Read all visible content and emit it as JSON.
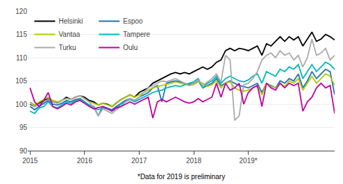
{
  "chart_data": {
    "type": "line",
    "categories": [
      "2015",
      null,
      null,
      null,
      null,
      null,
      null,
      null,
      null,
      null,
      null,
      null,
      "2016",
      null,
      null,
      null,
      null,
      null,
      null,
      null,
      null,
      null,
      null,
      null,
      "2017",
      null,
      null,
      null,
      null,
      null,
      null,
      null,
      null,
      null,
      null,
      null,
      "2018",
      null,
      null,
      null,
      null,
      null,
      null,
      null,
      null,
      null,
      null,
      null,
      "2019*",
      null,
      null,
      null,
      null,
      null,
      null,
      null,
      null,
      null,
      null,
      null,
      null,
      null,
      null,
      null,
      null,
      null,
      null,
      null
    ],
    "series": [
      {
        "name": "Helsinki",
        "color": "#000000",
        "values": [
          100.0,
          99.5,
          100.2,
          100.8,
          101.2,
          100.5,
          100.3,
          100.8,
          101.5,
          101.0,
          101.5,
          101.8,
          101.5,
          100.8,
          100.5,
          99.8,
          100.2,
          100.0,
          99.5,
          100.2,
          101.0,
          101.5,
          102.0,
          101.5,
          102.5,
          103.0,
          103.5,
          104.5,
          105.0,
          105.5,
          106.0,
          106.5,
          106.8,
          106.5,
          106.8,
          106.5,
          107.0,
          107.5,
          108.0,
          107.5,
          108.0,
          109.0,
          109.5,
          111.5,
          112.0,
          111.5,
          112.0,
          111.8,
          111.5,
          112.0,
          112.5,
          110.5,
          113.0,
          112.5,
          113.5,
          114.5,
          113.5,
          114.5,
          113.8,
          114.5,
          112.5,
          114.0,
          115.5,
          113.5,
          114.0,
          115.0,
          114.5,
          113.8
        ]
      },
      {
        "name": "Espoo",
        "color": "#2171b5",
        "values": [
          99.5,
          98.8,
          99.5,
          100.2,
          100.8,
          100.0,
          99.8,
          100.2,
          100.8,
          100.5,
          101.0,
          101.2,
          100.5,
          99.8,
          99.5,
          97.5,
          99.5,
          99.2,
          98.8,
          99.5,
          100.2,
          100.8,
          101.2,
          100.8,
          101.5,
          102.0,
          102.5,
          103.5,
          104.0,
          100.5,
          104.5,
          104.8,
          105.0,
          104.8,
          104.5,
          104.2,
          104.5,
          105.0,
          103.5,
          104.0,
          104.5,
          105.5,
          104.0,
          104.5,
          105.0,
          104.5,
          104.0,
          103.8,
          103.5,
          104.0,
          104.5,
          102.5,
          104.5,
          104.0,
          103.5,
          105.0,
          104.5,
          105.5,
          105.0,
          106.5,
          103.5,
          105.0,
          107.0,
          105.5,
          106.5,
          107.5,
          107.0,
          102.0
        ]
      },
      {
        "name": "Vantaa",
        "color": "#aacc00",
        "values": [
          100.5,
          99.8,
          100.5,
          101.0,
          101.5,
          100.8,
          100.5,
          100.8,
          101.2,
          101.0,
          101.5,
          101.8,
          101.2,
          100.5,
          100.2,
          99.8,
          100.2,
          99.8,
          99.5,
          100.2,
          101.0,
          101.5,
          102.0,
          101.5,
          102.0,
          102.5,
          103.0,
          103.5,
          103.8,
          104.0,
          104.2,
          104.5,
          104.8,
          104.5,
          104.2,
          104.0,
          104.2,
          104.8,
          104.5,
          103.8,
          104.2,
          105.0,
          103.5,
          104.5,
          104.8,
          103.5,
          103.0,
          102.8,
          103.0,
          103.5,
          104.0,
          102.0,
          104.5,
          103.8,
          103.5,
          104.5,
          103.8,
          105.0,
          104.5,
          105.5,
          103.0,
          104.5,
          106.0,
          104.5,
          105.5,
          106.5,
          106.0,
          104.0
        ]
      },
      {
        "name": "Tampere",
        "color": "#00b8b8",
        "values": [
          98.5,
          98.0,
          99.2,
          99.5,
          100.5,
          99.5,
          99.2,
          99.8,
          100.5,
          100.2,
          100.8,
          101.0,
          100.5,
          99.8,
          99.2,
          98.8,
          99.2,
          99.0,
          98.5,
          99.2,
          100.0,
          100.5,
          101.0,
          100.5,
          101.0,
          101.5,
          102.0,
          102.5,
          102.8,
          103.0,
          103.5,
          103.8,
          104.0,
          103.8,
          104.2,
          104.5,
          104.8,
          105.5,
          103.5,
          104.5,
          105.0,
          106.0,
          104.5,
          105.5,
          106.0,
          105.5,
          105.0,
          104.8,
          105.2,
          106.0,
          106.5,
          104.5,
          107.0,
          106.5,
          106.0,
          107.5,
          107.0,
          108.0,
          107.5,
          108.5,
          105.5,
          107.0,
          108.5,
          107.0,
          108.0,
          109.0,
          108.5,
          107.5
        ]
      },
      {
        "name": "Turku",
        "color": "#aaaaaa",
        "values": [
          100.2,
          99.5,
          100.0,
          100.5,
          101.0,
          100.5,
          100.2,
          100.8,
          101.2,
          101.0,
          101.5,
          101.8,
          101.2,
          100.5,
          99.2,
          97.5,
          99.0,
          98.5,
          98.0,
          98.8,
          99.5,
          100.5,
          101.2,
          100.8,
          101.5,
          102.5,
          103.5,
          104.0,
          104.5,
          105.0,
          104.8,
          105.2,
          105.5,
          105.0,
          104.5,
          104.0,
          104.5,
          105.2,
          104.0,
          104.8,
          105.5,
          106.5,
          104.8,
          110.5,
          109.5,
          96.5,
          97.5,
          104.2,
          104.5,
          105.5,
          107.0,
          109.5,
          110.5,
          111.0,
          110.0,
          111.5,
          110.5,
          111.0,
          109.5,
          110.5,
          108.0,
          110.0,
          114.0,
          110.5,
          111.0,
          112.0,
          109.5,
          110.5
        ]
      },
      {
        "name": "Oulu",
        "color": "#c000a0",
        "values": [
          103.5,
          100.5,
          99.5,
          100.8,
          102.5,
          99.5,
          99.0,
          99.5,
          100.2,
          99.8,
          100.5,
          100.8,
          100.2,
          99.5,
          99.0,
          99.2,
          99.5,
          99.0,
          98.5,
          99.2,
          99.5,
          100.0,
          100.5,
          100.0,
          100.5,
          101.0,
          101.5,
          97.0,
          100.5,
          101.0,
          100.5,
          101.0,
          101.5,
          101.0,
          100.5,
          100.2,
          100.5,
          101.2,
          100.5,
          101.0,
          101.5,
          104.5,
          101.5,
          104.5,
          103.0,
          103.5,
          104.5,
          100.0,
          102.5,
          103.5,
          104.0,
          99.5,
          104.5,
          103.5,
          103.0,
          104.5,
          103.5,
          104.5,
          104.0,
          104.5,
          98.5,
          100.5,
          101.5,
          103.5,
          104.5,
          103.5,
          104.0,
          98.0
        ]
      }
    ],
    "ylim": [
      90,
      120
    ],
    "yticks": [
      90,
      95,
      100,
      105,
      110,
      115,
      120
    ],
    "grid": "y",
    "legend": "upper left",
    "annotations": [
      "*Data for 2019 is preliminary"
    ]
  }
}
